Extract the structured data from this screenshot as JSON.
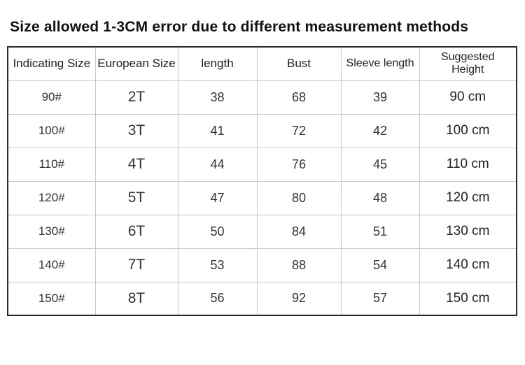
{
  "title": "Size allowed 1-3CM error due to different measurement methods",
  "colors": {
    "background": "#ffffff",
    "title_text": "#111111",
    "cell_text": "#333333",
    "outer_border": "#2b2b2b",
    "inner_border": "#c9c9c9"
  },
  "chart_data": {
    "type": "table",
    "title": "Size allowed 1-3CM error due to different measurement methods",
    "columns": [
      "Indicating Size",
      "European Size",
      "length",
      "Bust",
      "Sleeve length",
      "Suggested Height"
    ],
    "rows": [
      [
        "90#",
        "2T",
        "38",
        "68",
        "39",
        "90 cm"
      ],
      [
        "100#",
        "3T",
        "41",
        "72",
        "42",
        "100 cm"
      ],
      [
        "110#",
        "4T",
        "44",
        "76",
        "45",
        "110 cm"
      ],
      [
        "120#",
        "5T",
        "47",
        "80",
        "48",
        "120 cm"
      ],
      [
        "130#",
        "6T",
        "50",
        "84",
        "51",
        "130 cm"
      ],
      [
        "140#",
        "7T",
        "53",
        "88",
        "54",
        "140 cm"
      ],
      [
        "150#",
        "8T",
        "56",
        "92",
        "57",
        "150 cm"
      ]
    ]
  }
}
